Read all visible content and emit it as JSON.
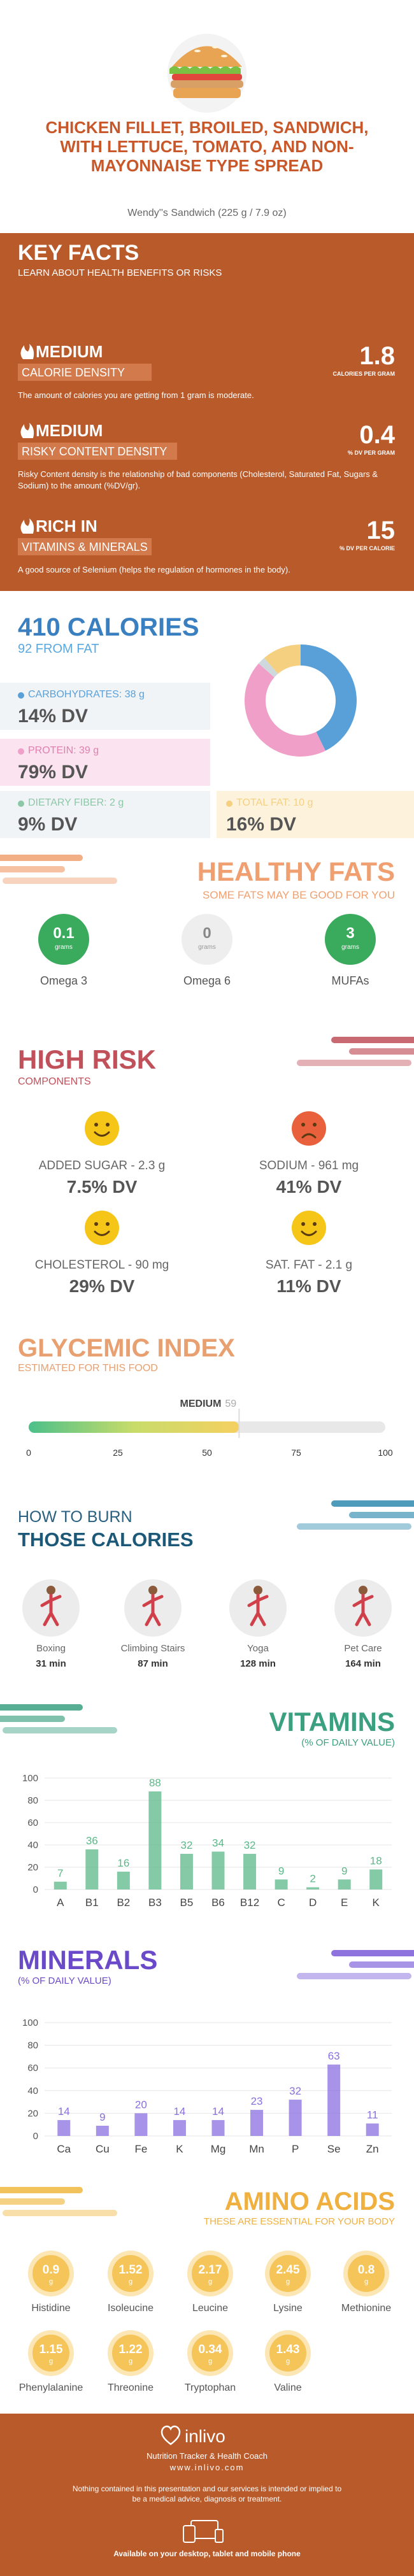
{
  "header": {
    "title": "CHICKEN FILLET, BROILED, SANDWICH, WITH LETTUCE, TOMATO, AND NON-MAYONNAISE TYPE SPREAD",
    "subtitle": "Wendy''s Sandwich (225 g / 7.9 oz)"
  },
  "key_facts": {
    "title": "KEY FACTS",
    "subtitle": "LEARN ABOUT HEALTH BENEFITS OR RISKS",
    "items": [
      {
        "level": "MEDIUM",
        "name": "CALORIE DENSITY",
        "value": 1.8,
        "unit": "CALORIES PER GRAM",
        "description": "The amount of calories you are getting from 1 gram is moderate."
      },
      {
        "level": "MEDIUM",
        "name": "RISKY CONTENT DENSITY",
        "value": 0.4,
        "unit": "% DV PER GRAM",
        "description": "Risky Content density is the relationship of bad components (Cholesterol, Saturated Fat, Sugars & Sodium) to the amount (%DV/gr)."
      },
      {
        "level": "RICH IN",
        "name": "VITAMINS & MINERALS",
        "value": 15,
        "unit": "% DV PER CALORIE",
        "description": "A good source of Selenium (helps the regulation of hormones in the body)."
      }
    ]
  },
  "calories": {
    "title": "410 CALORIES",
    "subtitle": "92 FROM FAT",
    "macros": [
      {
        "label": "CARBOHYDRATES: 38 g",
        "dv": "14% DV",
        "color": "#5aa0d8"
      },
      {
        "label": "PROTEIN: 39 g",
        "dv": "79% DV",
        "color": "#f0a0c8"
      },
      {
        "label": "DIETARY FIBER: 2 g",
        "dv": "9% DV",
        "color": "#8cc8a8"
      },
      {
        "label": "TOTAL FAT: 10 g",
        "dv": "16% DV",
        "color": "#f5d080"
      }
    ]
  },
  "healthy_fats": {
    "title": "HEALTHY FATS",
    "subtitle": "SOME FATS MAY BE GOOD FOR YOU",
    "items": [
      {
        "value": 0.1,
        "unit": "grams",
        "name": "Omega 3",
        "color": "#3aaa5c"
      },
      {
        "value": 0,
        "unit": "grams",
        "name": "Omega 6",
        "color": "#eeeeee"
      },
      {
        "value": 3,
        "unit": "grams",
        "name": "MUFAs",
        "color": "#3aaa5c"
      }
    ]
  },
  "high_risk": {
    "title": "HIGH RISK",
    "subtitle": "COMPONENTS",
    "items": [
      {
        "label": "ADDED SUGAR - 2.3 g",
        "dv": "7.5% DV",
        "color": "#f5c518"
      },
      {
        "label": "SODIUM - 961 mg",
        "dv": "41% DV",
        "color": "#e8613c"
      },
      {
        "label": "CHOLESTEROL - 90 mg",
        "dv": "29% DV",
        "color": "#f5c518"
      },
      {
        "label": "SAT. FAT - 2.1 g",
        "dv": "11% DV",
        "color": "#f5c518"
      }
    ]
  },
  "glycemic": {
    "title": "GLYCEMIC INDEX",
    "subtitle": "ESTIMATED FOR THIS FOOD",
    "level": "MEDIUM",
    "value": 59,
    "xlim": [
      0,
      100
    ],
    "xticks": [
      0,
      25,
      50,
      75,
      100
    ]
  },
  "burn": {
    "title": "HOW TO BURN",
    "title2": "THOSE CALORIES",
    "activities": [
      {
        "name": "Boxing",
        "time": "31 min"
      },
      {
        "name": "Climbing Stairs",
        "time": "87 min"
      },
      {
        "name": "Yoga",
        "time": "128 min"
      },
      {
        "name": "Pet Care",
        "time": "164 min"
      }
    ]
  },
  "chart_data": [
    {
      "type": "pie",
      "values": [
        38,
        39,
        2,
        10
      ],
      "colors": [
        "#5aa0d8",
        "#f0a0c8",
        "#cfd8dc",
        "#f5d080"
      ]
    },
    {
      "type": "bar",
      "title": "VITAMINS",
      "subtitle": "(% OF DAILY VALUE)",
      "categories": [
        "A",
        "B1",
        "B2",
        "B3",
        "B5",
        "B6",
        "B12",
        "C",
        "D",
        "E",
        "K"
      ],
      "values": [
        7,
        36,
        16,
        88,
        32,
        34,
        32,
        9,
        2,
        9,
        18
      ],
      "color": "#5cb888",
      "ylim": [
        0,
        100
      ],
      "yticks": [
        0,
        20,
        40,
        60,
        80,
        100
      ],
      "grid": true
    },
    {
      "type": "bar",
      "title": "MINERALS",
      "subtitle": "(% OF DAILY VALUE)",
      "categories": [
        "Ca",
        "Cu",
        "Fe",
        "K",
        "Mg",
        "Mn",
        "P",
        "Se",
        "Zn"
      ],
      "values": [
        14,
        9,
        20,
        14,
        14,
        23,
        32,
        63,
        11
      ],
      "color": "#8a6fe0",
      "ylim": [
        0,
        100
      ],
      "yticks": [
        0,
        20,
        40,
        60,
        80,
        100
      ],
      "grid": true
    }
  ],
  "amino_acids": {
    "title": "AMINO ACIDS",
    "subtitle": "THESE ARE ESSENTIAL FOR YOUR BODY",
    "items": [
      {
        "value": 0.9,
        "unit": "g",
        "name": "Histidine"
      },
      {
        "value": 1.52,
        "unit": "g",
        "name": "Isoleucine"
      },
      {
        "value": 2.17,
        "unit": "g",
        "name": "Leucine"
      },
      {
        "value": 2.45,
        "unit": "g",
        "name": "Lysine"
      },
      {
        "value": 0.8,
        "unit": "g",
        "name": "Methionine"
      },
      {
        "value": 1.15,
        "unit": "g",
        "name": "Phenylalanine"
      },
      {
        "value": 1.22,
        "unit": "g",
        "name": "Threonine"
      },
      {
        "value": 0.34,
        "unit": "g",
        "name": "Tryptophan"
      },
      {
        "value": 1.43,
        "unit": "g",
        "name": "Valine"
      }
    ]
  },
  "footer": {
    "brand": "inlivo",
    "tagline": "Nutrition Tracker & Health Coach",
    "url": "www.inlivo.com",
    "disclaimer": "Nothing contained in this presentation and our services is intended or implied to be a medical advice, diagnosis or treatment.",
    "availability": "Available on your desktop, tablet and mobile phone"
  }
}
